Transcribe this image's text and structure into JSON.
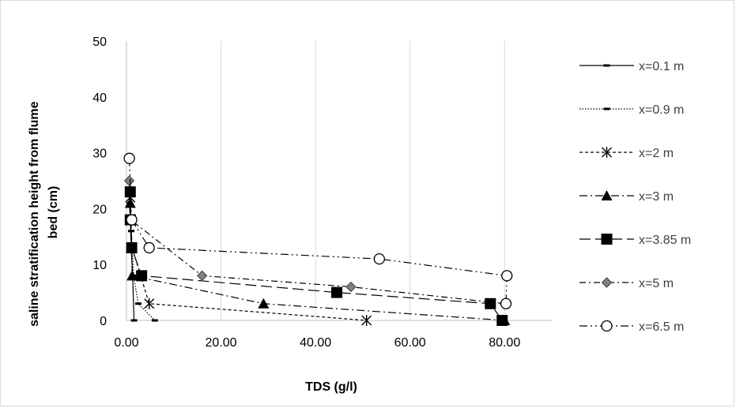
{
  "chart_data": {
    "type": "scatter",
    "xlabel": "TDS  (g/l)",
    "ylabel_lines": [
      "saline stratification height from flume",
      "bed (cm)"
    ],
    "xlim": [
      0,
      90
    ],
    "ylim": [
      0,
      50
    ],
    "x_ticks": [
      0,
      20,
      40,
      60,
      80
    ],
    "x_tick_labels": [
      "0.00",
      "20.00",
      "40.00",
      "60.00",
      "80.00"
    ],
    "y_ticks": [
      0,
      10,
      20,
      30,
      40,
      50
    ],
    "y_tick_labels": [
      "0",
      "10",
      "20",
      "30",
      "40",
      "50"
    ],
    "grid": "vertical",
    "legend_position": "right",
    "series": [
      {
        "name": "x=0.1 m",
        "marker": "dash",
        "line": "solid",
        "x": [
          0.5,
          0.8,
          1.0,
          1.3,
          1.6
        ],
        "y": [
          23,
          18,
          13,
          8,
          0
        ]
      },
      {
        "name": "x=0.9 m",
        "marker": "dash",
        "line": "dotted",
        "x": [
          0.7,
          1.0,
          1.5,
          2.5,
          6.0
        ],
        "y": [
          21,
          16,
          8,
          3,
          0
        ]
      },
      {
        "name": "x=2 m",
        "marker": "asterisk",
        "line": "dashed",
        "x": [
          0.8,
          0.9,
          1.2,
          4.8,
          50.8
        ],
        "y": [
          22,
          18,
          13,
          3,
          0
        ]
      },
      {
        "name": "x=3 m",
        "marker": "triangle",
        "line": "dashdot",
        "x": [
          0.8,
          1.0,
          1.2,
          29.0,
          80.0
        ],
        "y": [
          21,
          18,
          8,
          3,
          0
        ]
      },
      {
        "name": "x=3.85 m",
        "marker": "square",
        "line": "longdash",
        "x": [
          0.8,
          0.8,
          1.1,
          3.2,
          44.5,
          77.0,
          79.5
        ],
        "y": [
          23,
          18,
          13,
          8,
          5,
          3,
          0
        ]
      },
      {
        "name": "x=5 m",
        "marker": "diamond",
        "line": "dashdotlong",
        "x": [
          0.6,
          0.9,
          16.0,
          47.5,
          80.0
        ],
        "y": [
          25,
          18,
          8,
          6,
          3
        ]
      },
      {
        "name": "x=6.5 m",
        "marker": "circle",
        "line": "dashdotdot",
        "x": [
          0.6,
          1.1,
          4.8,
          53.5,
          80.5,
          80.3
        ],
        "y": [
          29,
          18,
          13,
          11,
          8,
          3
        ]
      }
    ]
  }
}
